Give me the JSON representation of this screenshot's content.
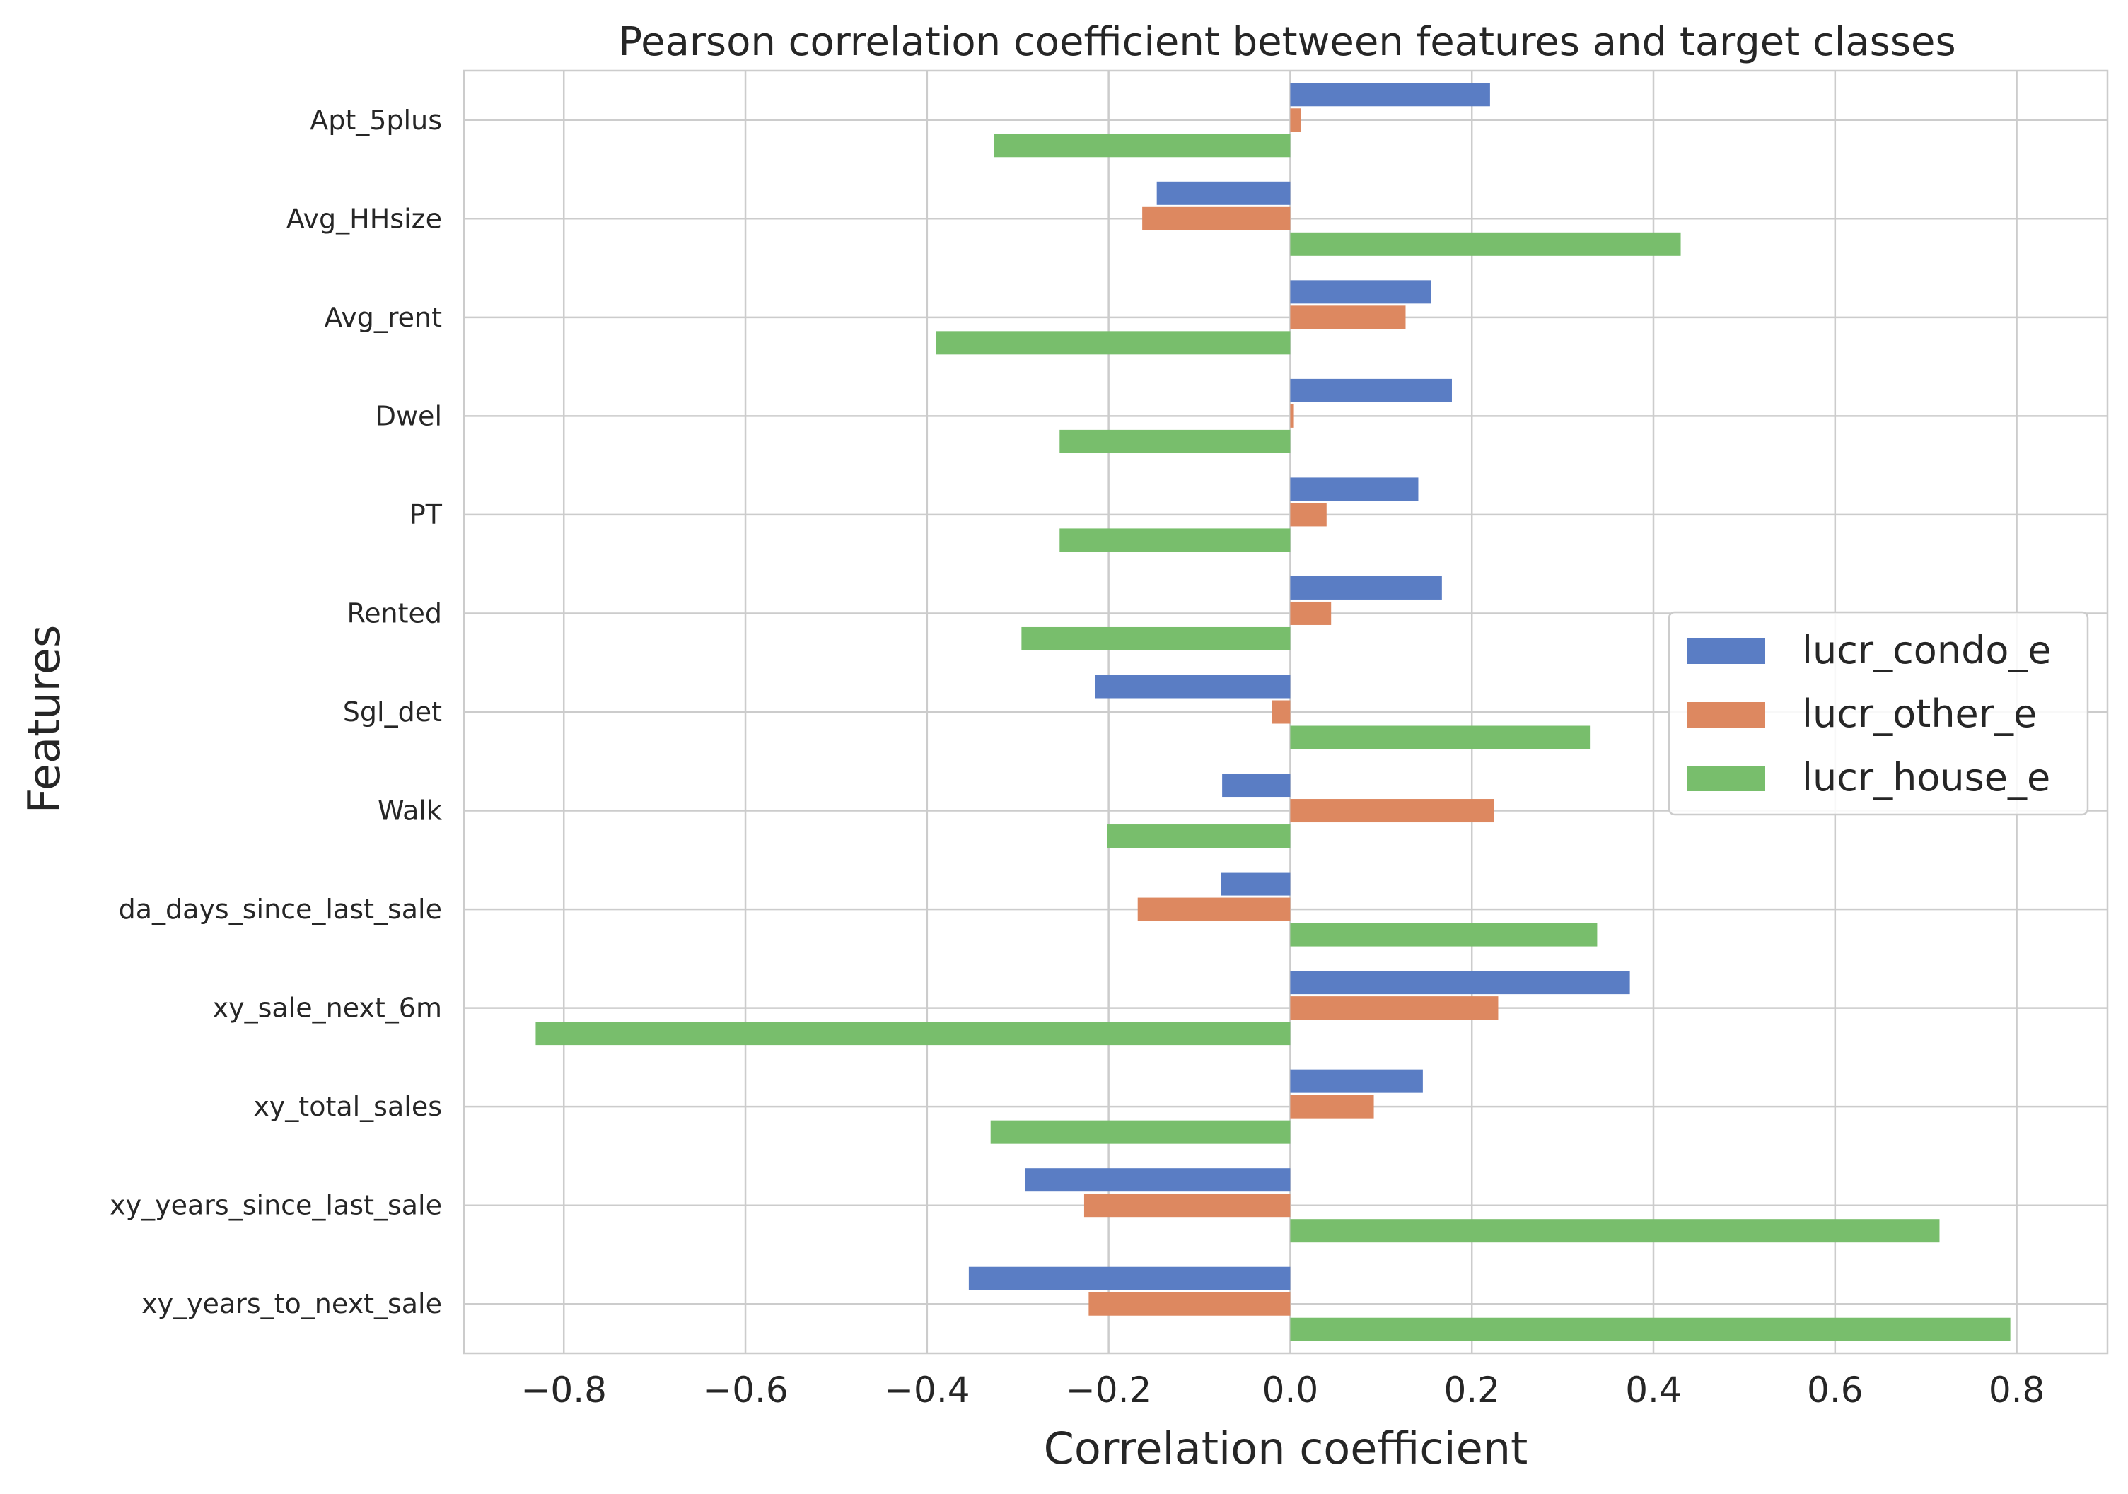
{
  "chart_data": {
    "type": "bar",
    "orientation": "horizontal",
    "title": "Pearson correlation coefficient between features and target classes",
    "xlabel": "Correlation coefficient",
    "ylabel": "Features",
    "xlim": [
      -0.91,
      0.9
    ],
    "xticks": [
      -0.8,
      -0.6,
      -0.4,
      -0.2,
      0.0,
      0.2,
      0.4,
      0.6,
      0.8
    ],
    "xtick_labels": [
      "−0.8",
      "−0.6",
      "−0.4",
      "−0.2",
      "0.0",
      "0.2",
      "0.4",
      "0.6",
      "0.8"
    ],
    "grid": true,
    "legend_position": "right",
    "categories": [
      "Apt_5plus",
      "Avg_HHsize",
      "Avg_rent",
      "Dwel",
      "PT",
      "Rented",
      "Sgl_det",
      "Walk",
      "da_days_since_last_sale",
      "xy_sale_next_6m",
      "xy_total_sales",
      "xy_years_since_last_sale",
      "xy_years_to_next_sale"
    ],
    "series": [
      {
        "name": "lucr_condo_e",
        "color": "#5a7dc4",
        "values": [
          0.22,
          -0.147,
          0.155,
          0.178,
          0.141,
          0.167,
          -0.215,
          -0.075,
          -0.076,
          0.374,
          0.146,
          -0.292,
          -0.354
        ]
      },
      {
        "name": "lucr_other_e",
        "color": "#dd8860",
        "values": [
          0.012,
          -0.163,
          0.127,
          0.004,
          0.04,
          0.045,
          -0.02,
          0.224,
          -0.168,
          0.229,
          0.092,
          -0.227,
          -0.222
        ]
      },
      {
        "name": "lucr_house_e",
        "color": "#78be6c",
        "values": [
          -0.326,
          0.43,
          -0.39,
          -0.254,
          -0.254,
          -0.296,
          0.33,
          -0.202,
          0.338,
          -0.831,
          -0.33,
          0.715,
          0.793
        ]
      }
    ]
  }
}
